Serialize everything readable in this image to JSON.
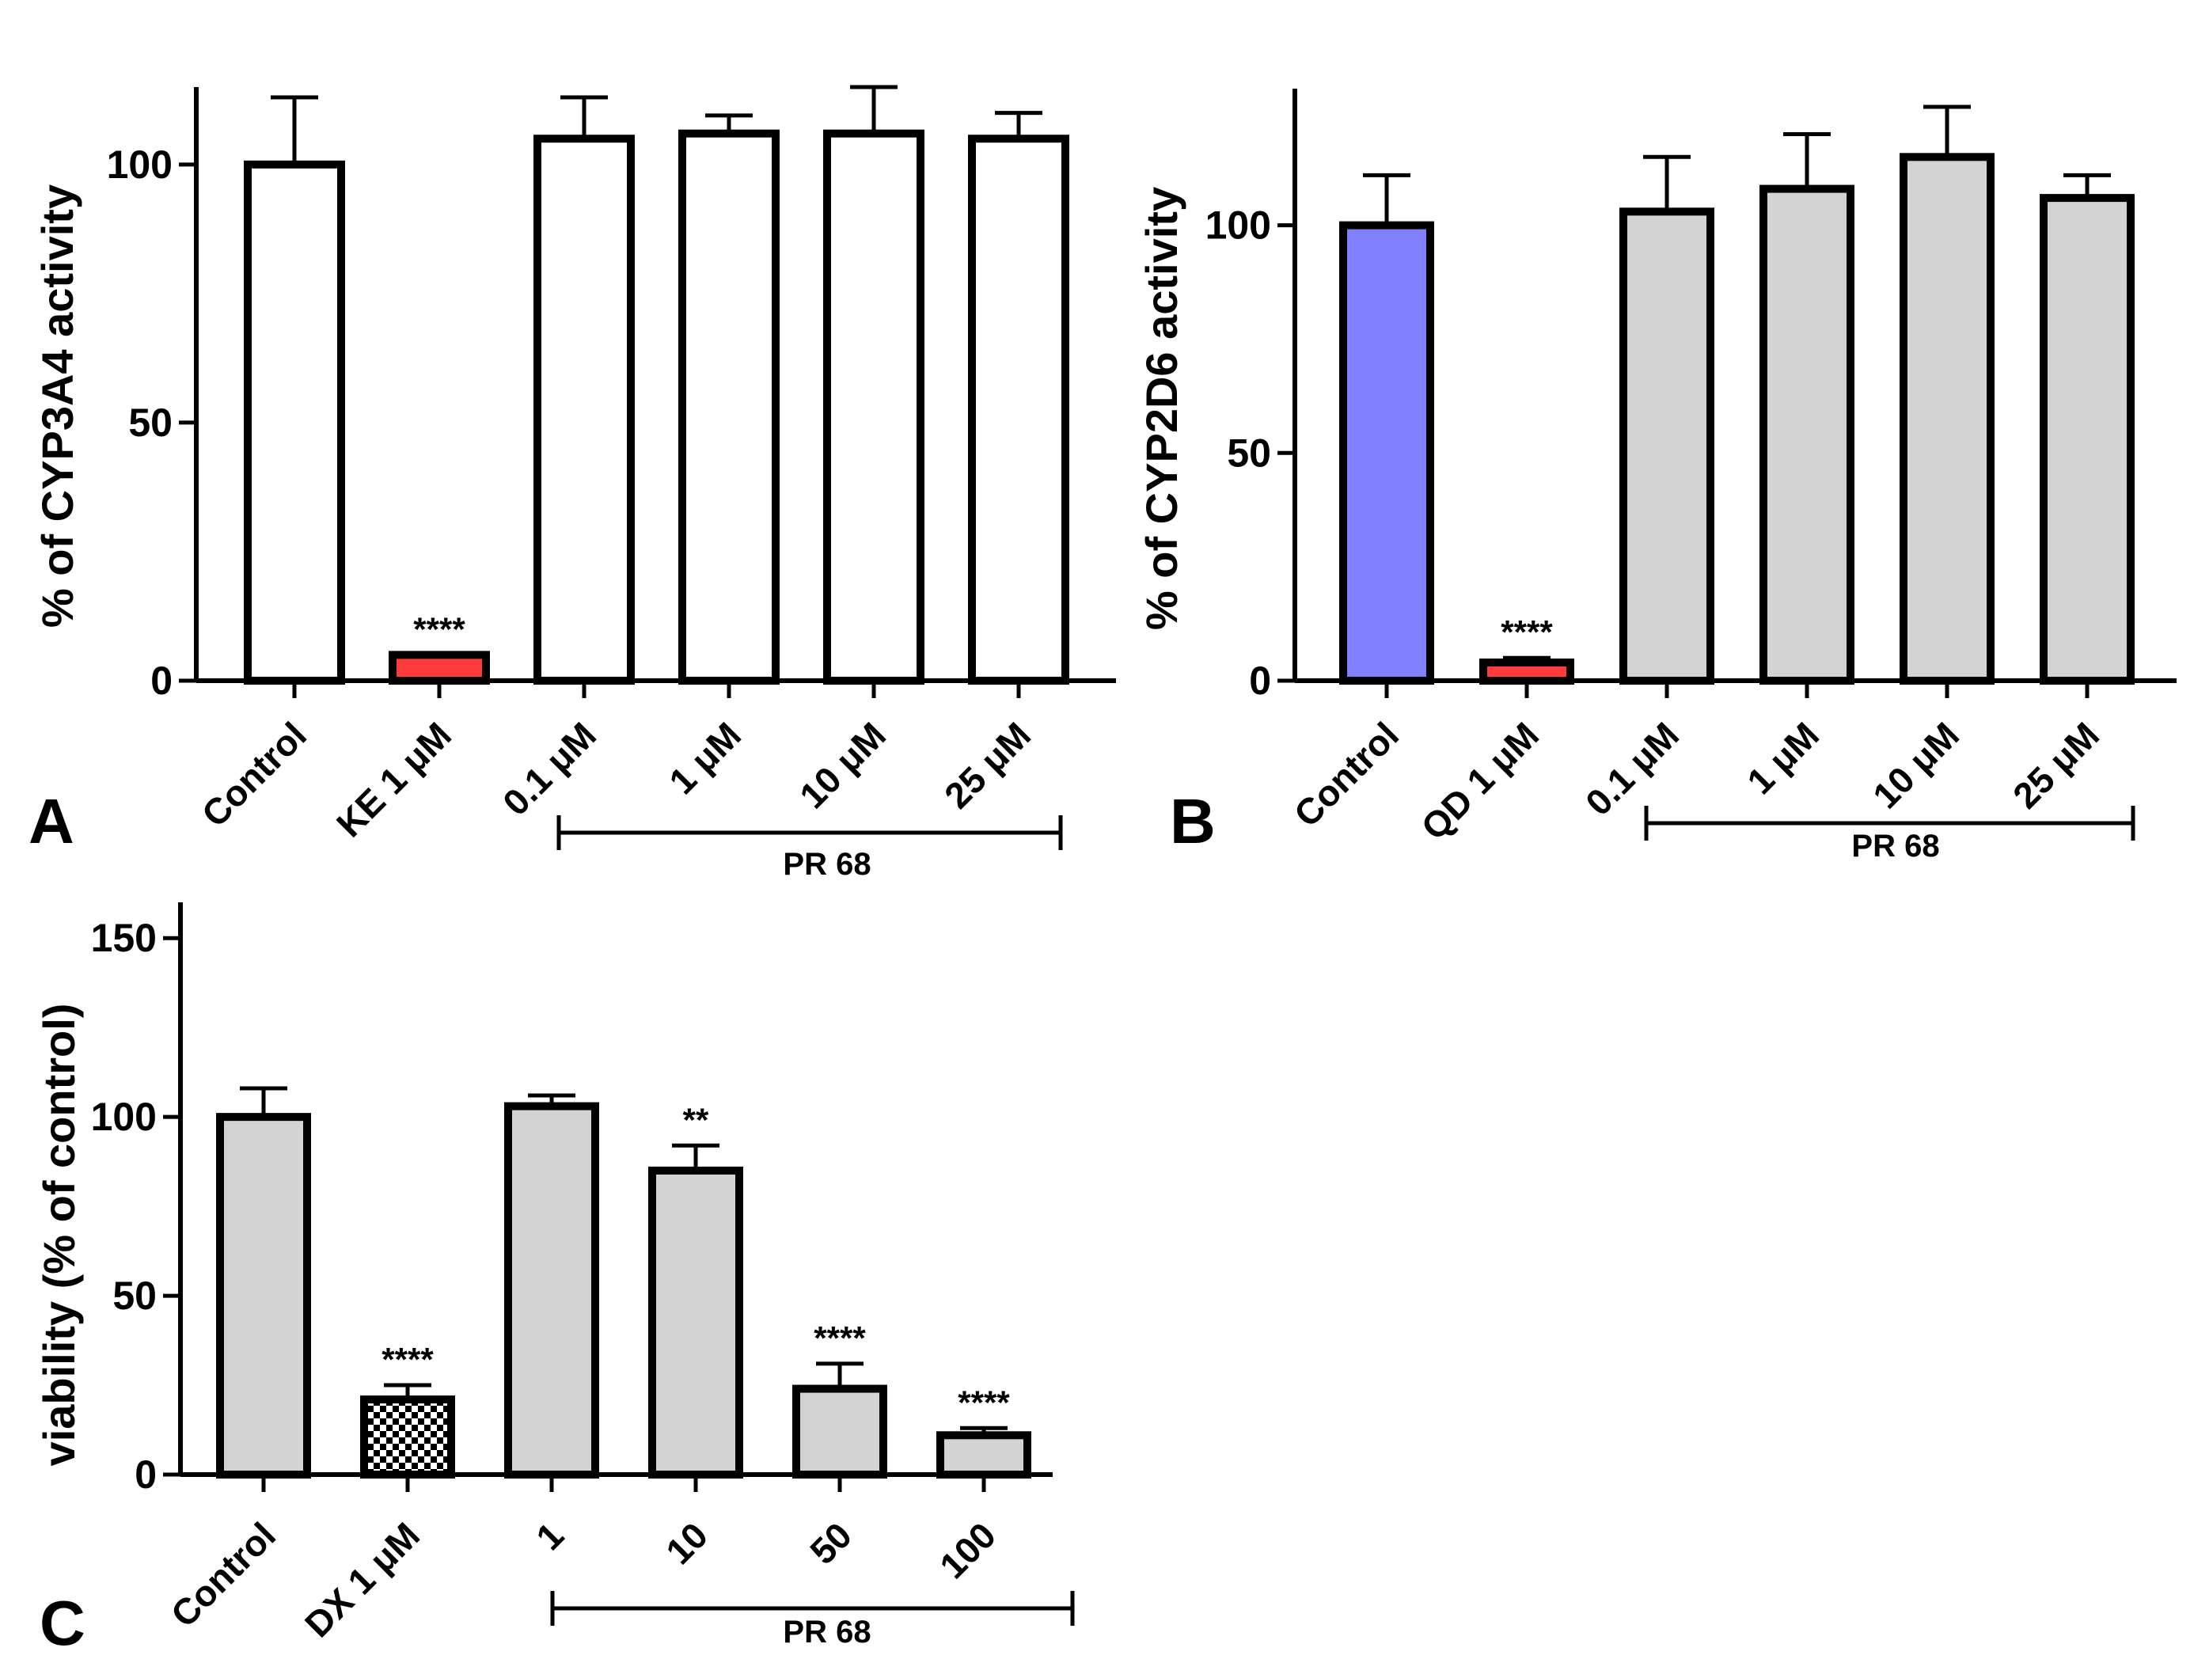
{
  "chart_data": [
    {
      "type": "bar",
      "panel": "A",
      "ylabel": "% of CYP3A4 activity",
      "ylim": [
        0,
        115
      ],
      "yticks": [
        0,
        50,
        100
      ],
      "categories": [
        "Control",
        "KE 1 μM",
        "0.1 μM",
        "1 μM",
        "10 μM",
        "25 μM"
      ],
      "values": [
        100,
        5,
        105,
        106,
        106,
        105
      ],
      "errors": [
        13,
        0,
        8,
        3.5,
        9,
        5
      ],
      "significance": [
        "",
        "****",
        "",
        "",
        "",
        ""
      ],
      "bar_colors": [
        "#ffffff",
        "#ff3b3b",
        "#ffffff",
        "#ffffff",
        "#ffffff",
        "#ffffff"
      ],
      "group_label": "PR 68",
      "group_range": [
        2,
        5
      ]
    },
    {
      "type": "bar",
      "panel": "B",
      "ylabel": "% of CYP2D6 activity",
      "ylim": [
        0,
        130
      ],
      "yticks": [
        0,
        50,
        100
      ],
      "categories": [
        "Control",
        "QD 1 μM",
        "0.1 μM",
        "1 μM",
        "10 μM",
        "25 μM"
      ],
      "values": [
        100,
        4,
        103,
        108,
        115,
        106
      ],
      "errors": [
        11,
        1,
        12,
        12,
        11,
        5
      ],
      "significance": [
        "",
        "****",
        "",
        "",
        "",
        ""
      ],
      "bar_colors": [
        "#8080ff",
        "#ff3b3b",
        "#d3d3d3",
        "#d3d3d3",
        "#d3d3d3",
        "#d3d3d3"
      ],
      "group_label": "PR 68",
      "group_range": [
        2,
        5
      ]
    },
    {
      "type": "bar",
      "panel": "C",
      "ylabel": "viability (% of control)",
      "ylim": [
        0,
        160
      ],
      "yticks": [
        0,
        50,
        100,
        150
      ],
      "categories": [
        "Control",
        "DX 1 μM",
        "1",
        "10",
        "50",
        "100"
      ],
      "values": [
        100,
        21,
        103,
        85,
        24,
        11
      ],
      "errors": [
        8,
        4,
        3,
        7,
        7,
        2
      ],
      "significance": [
        "",
        "****",
        "",
        "**",
        "****",
        "****"
      ],
      "bar_colors": [
        "#d3d3d3",
        "checker",
        "#d3d3d3",
        "#d3d3d3",
        "#d3d3d3",
        "#d3d3d3"
      ],
      "group_label": "PR 68",
      "group_range": [
        2,
        5
      ]
    }
  ]
}
